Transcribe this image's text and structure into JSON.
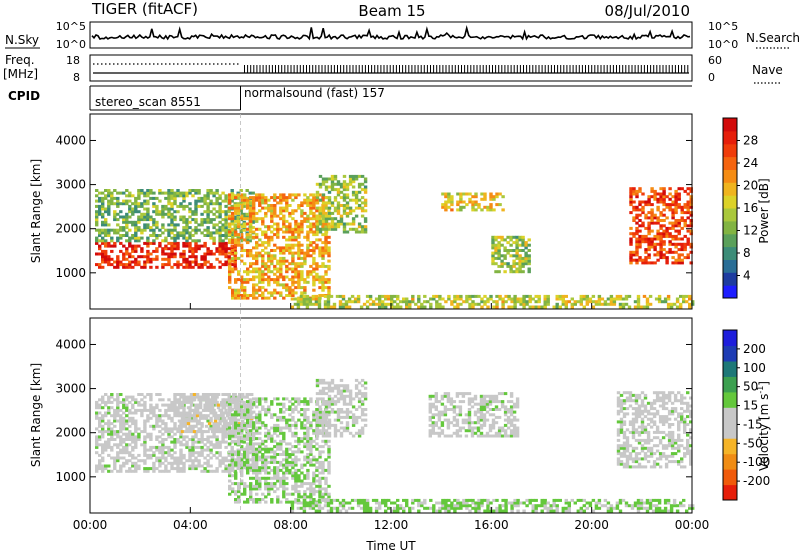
{
  "header": {
    "title": "TIGER (fitACF)",
    "beam": "Beam 15",
    "date": "08/Jul/2010"
  },
  "top_panels": {
    "nsky_label": "N.Sky",
    "nsky_ticks": [
      "10^5",
      "10^0"
    ],
    "nsearch_label": "N.Search",
    "nsearch_ticks": [
      "10^5",
      "10^0"
    ],
    "freq_label_1": "Freq.",
    "freq_label_2": "[MHz]",
    "freq_ticks": [
      "18",
      "8"
    ],
    "nave_label": "Nave",
    "nave_ticks": [
      "60",
      "0"
    ],
    "cpid_label": "CPID",
    "cpid_segments": [
      {
        "label": "stereo_scan 8551",
        "start_hour": 0,
        "end_hour": 6
      },
      {
        "label": "normalsound (fast) 157",
        "start_hour": 6,
        "end_hour": 24
      }
    ]
  },
  "chart_data": [
    {
      "type": "heatmap",
      "panel": "power",
      "ylabel": "Slant Range [km]",
      "yticks": [
        "1000",
        "2000",
        "3000",
        "4000"
      ],
      "ylim": [
        180,
        4600
      ],
      "x": [
        "00:00",
        "04:00",
        "08:00",
        "12:00",
        "16:00",
        "20:00",
        "00:00"
      ],
      "xlim_hours": [
        0,
        24
      ],
      "colorbar": {
        "label": "Power [dB]",
        "ticks": [
          "28",
          "24",
          "20",
          "16",
          "12",
          "8",
          "4"
        ],
        "range": [
          0,
          32
        ],
        "colors": [
          "#1e1eff",
          "#1e3ca0",
          "#2a6e96",
          "#3c8c78",
          "#5aa05a",
          "#82b442",
          "#aac83c",
          "#dcd228",
          "#f0b41e",
          "#f58c14",
          "#f5640f",
          "#f03c0a",
          "#e61e0a",
          "#d20a0a"
        ]
      },
      "regions": [
        {
          "start_hour": 0.2,
          "end_hour": 5.8,
          "range_km": [
            1100,
            1700
          ],
          "power_db": 28
        },
        {
          "start_hour": 0.2,
          "end_hour": 6.5,
          "range_km": [
            1700,
            2900
          ],
          "power_db": 12
        },
        {
          "start_hour": 5.5,
          "end_hour": 9.5,
          "range_km": [
            400,
            2800
          ],
          "power_db": 20
        },
        {
          "start_hour": 9.0,
          "end_hour": 11.0,
          "range_km": [
            1900,
            3200
          ],
          "power_db": 14
        },
        {
          "start_hour": 14.0,
          "end_hour": 16.5,
          "range_km": [
            2400,
            2800
          ],
          "power_db": 18
        },
        {
          "start_hour": 16.0,
          "end_hour": 17.5,
          "range_km": [
            1000,
            1800
          ],
          "power_db": 14
        },
        {
          "start_hour": 21.5,
          "end_hour": 24.0,
          "range_km": [
            1200,
            2900
          ],
          "power_db": 26
        },
        {
          "start_hour": 8.0,
          "end_hour": 24.0,
          "range_km": [
            200,
            450
          ],
          "power_db": 16
        }
      ]
    },
    {
      "type": "heatmap",
      "panel": "velocity",
      "ylabel": "Slant Range [km]",
      "yticks": [
        "1000",
        "2000",
        "3000",
        "4000"
      ],
      "ylim": [
        180,
        4600
      ],
      "x": [
        "00:00",
        "04:00",
        "08:00",
        "12:00",
        "16:00",
        "20:00",
        "00:00"
      ],
      "xlim_hours": [
        0,
        24
      ],
      "xlabel": "Time UT",
      "colorbar": {
        "label": "Velocity [m s-1]",
        "label_main": "Velocity [m s",
        "label_sup": "-1",
        "label_end": "]",
        "ticks": [
          "200",
          "100",
          "50",
          "15",
          "-15",
          "-50",
          "-100",
          "-200"
        ],
        "range": [
          -250,
          250
        ],
        "colors": [
          "#e61e0a",
          "#f05a0a",
          "#f08c14",
          "#f5b428",
          "#c8c8c8",
          "#c8c8c8",
          "#64c83c",
          "#3ca050",
          "#1e7878",
          "#1e3cb4",
          "#1e1edc"
        ]
      },
      "regions": [
        {
          "start_hour": 0.2,
          "end_hour": 6.5,
          "range_km": [
            1100,
            2900
          ],
          "velocity_ms": 0
        },
        {
          "start_hour": 3.5,
          "end_hour": 6.5,
          "range_km": [
            2000,
            2900
          ],
          "velocity_ms": -40
        },
        {
          "start_hour": 5.5,
          "end_hour": 9.5,
          "range_km": [
            400,
            2800
          ],
          "velocity_ms": 20
        },
        {
          "start_hour": 9.0,
          "end_hour": 11.0,
          "range_km": [
            1900,
            3200
          ],
          "velocity_ms": 0
        },
        {
          "start_hour": 13.5,
          "end_hour": 17.0,
          "range_km": [
            1900,
            2900
          ],
          "velocity_ms": 0
        },
        {
          "start_hour": 21.0,
          "end_hour": 24.0,
          "range_km": [
            1200,
            2900
          ],
          "velocity_ms": 0
        },
        {
          "start_hour": 8.0,
          "end_hour": 24.0,
          "range_km": [
            200,
            450
          ],
          "velocity_ms": 30
        }
      ]
    }
  ]
}
